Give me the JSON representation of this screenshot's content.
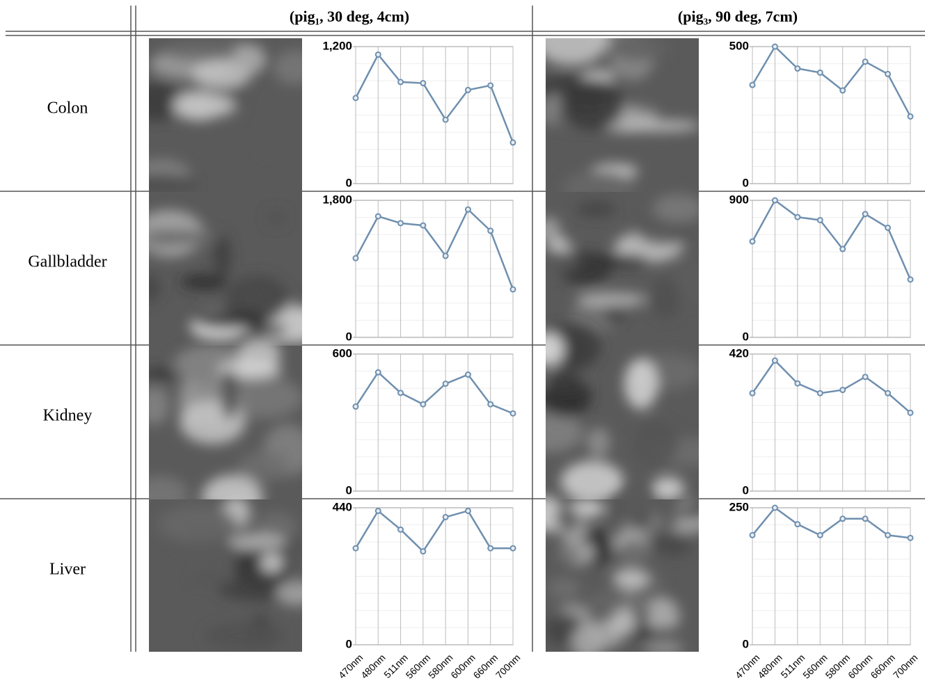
{
  "columns": [
    "(pig₁, 30 deg, 4cm)",
    "(pig₃, 90 deg, 7cm)"
  ],
  "rows": [
    "Colon",
    "Gallbladder",
    "Kidney",
    "Liver"
  ],
  "chart_data": [
    {
      "type": "line",
      "color": "#6f8fae",
      "grid": true,
      "values": [
        750,
        1130,
        890,
        880,
        560,
        820,
        860,
        360
      ],
      "ylim": [
        0,
        1200
      ],
      "yticks": [
        0,
        {
          "value": 1200,
          "label": "1,200"
        }
      ]
    },
    {
      "type": "line",
      "color": "#6f8fae",
      "grid": true,
      "values": [
        360,
        500,
        420,
        405,
        340,
        445,
        400,
        245
      ],
      "ylim": [
        0,
        500
      ],
      "yticks": [
        0,
        500
      ]
    },
    {
      "type": "line",
      "color": "#6f8fae",
      "grid": true,
      "values": [
        1040,
        1590,
        1500,
        1470,
        1070,
        1680,
        1400,
        630
      ],
      "ylim": [
        0,
        1800
      ],
      "yticks": [
        0,
        {
          "value": 1800,
          "label": "1,800"
        }
      ]
    },
    {
      "type": "line",
      "color": "#6f8fae",
      "grid": true,
      "values": [
        630,
        900,
        790,
        770,
        580,
        810,
        720,
        380
      ],
      "ylim": [
        0,
        900
      ],
      "yticks": [
        0,
        900
      ]
    },
    {
      "type": "line",
      "color": "#6f8fae",
      "grid": true,
      "values": [
        370,
        520,
        430,
        380,
        470,
        510,
        380,
        340
      ],
      "ylim": [
        0,
        600
      ],
      "yticks": [
        0,
        600
      ]
    },
    {
      "type": "line",
      "color": "#6f8fae",
      "grid": true,
      "values": [
        300,
        400,
        330,
        300,
        310,
        350,
        300,
        240
      ],
      "ylim": [
        0,
        420
      ],
      "yticks": [
        0,
        420
      ]
    },
    {
      "type": "line",
      "color": "#6f8fae",
      "grid": true,
      "categories": [
        "470nm",
        "480nm",
        "511nm",
        "560nm",
        "580nm",
        "600nm",
        "660nm",
        "700nm"
      ],
      "values": [
        310,
        430,
        370,
        300,
        410,
        430,
        310,
        310
      ],
      "ylim": [
        0,
        440
      ],
      "yticks": [
        0,
        440
      ]
    },
    {
      "type": "line",
      "color": "#6f8fae",
      "grid": true,
      "categories": [
        "470nm",
        "480nm",
        "511nm",
        "560nm",
        "580nm",
        "600nm",
        "660nm",
        "700nm"
      ],
      "values": [
        200,
        250,
        220,
        200,
        230,
        230,
        200,
        195
      ],
      "ylim": [
        0,
        250
      ],
      "yticks": [
        0,
        250
      ]
    }
  ]
}
